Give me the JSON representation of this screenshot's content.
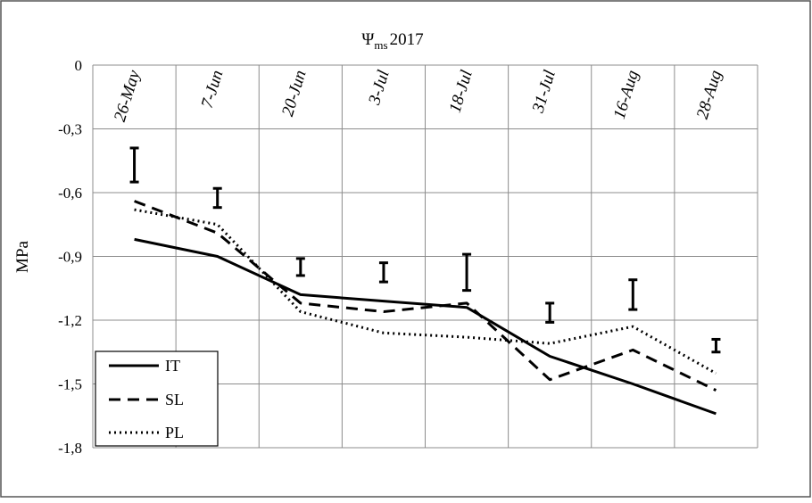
{
  "chart_data": {
    "type": "line",
    "title_main": "Ψ",
    "title_sub": "ms",
    "title_year": "2017",
    "ylabel": "MPa",
    "ylim": [
      -1.8,
      0
    ],
    "yticks": [
      0,
      -0.3,
      -0.6,
      -0.9,
      -1.2,
      -1.5,
      -1.8
    ],
    "ytick_labels": [
      "0",
      "-0,3",
      "-0,6",
      "-0,9",
      "-1,2",
      "-1,5",
      "-1,8"
    ],
    "categories": [
      "26-May",
      "7-Jun",
      "20-Jun",
      "3-Jul",
      "18-Jul",
      "31-Jul",
      "16-Aug",
      "28-Aug"
    ],
    "grid": true,
    "legend_position": "bottom-left",
    "series": [
      {
        "name": "IT",
        "style": "solid",
        "values": [
          -0.82,
          -0.9,
          -1.08,
          -1.11,
          -1.14,
          -1.37,
          -1.5,
          -1.64
        ]
      },
      {
        "name": "SL",
        "style": "dashed",
        "values": [
          -0.64,
          -0.79,
          -1.12,
          -1.16,
          -1.12,
          -1.48,
          -1.34,
          -1.53
        ]
      },
      {
        "name": "PL",
        "style": "dotted",
        "values": [
          -0.68,
          -0.75,
          -1.16,
          -1.26,
          -1.28,
          -1.31,
          -1.23,
          -1.45
        ]
      }
    ],
    "error_bars": [
      [
        -0.39,
        -0.55
      ],
      [
        -0.58,
        -0.67
      ],
      [
        -0.91,
        -0.99
      ],
      [
        -0.93,
        -1.02
      ],
      [
        -0.89,
        -1.06
      ],
      [
        -1.12,
        -1.21
      ],
      [
        -1.01,
        -1.15
      ],
      [
        -1.29,
        -1.35
      ]
    ]
  }
}
